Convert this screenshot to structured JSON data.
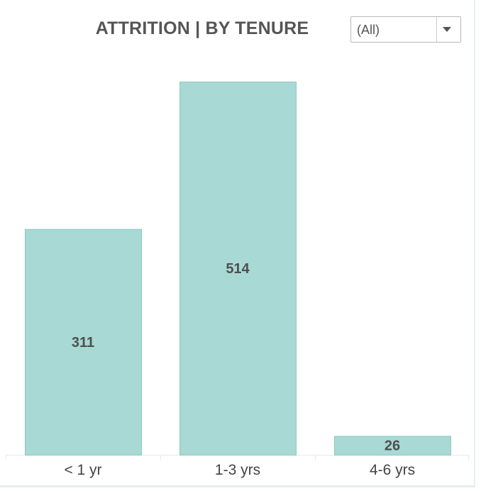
{
  "header": {
    "title": "ATTRITION | BY TENURE"
  },
  "filter": {
    "selected": "(All)",
    "icon": "chevron-down-icon"
  },
  "chart_data": {
    "type": "bar",
    "title": "ATTRITION | BY TENURE",
    "xlabel": "",
    "ylabel": "",
    "categories": [
      "< 1 yr",
      "1-3 yrs",
      "4-6 yrs"
    ],
    "values": [
      311,
      514,
      26
    ],
    "ylim": [
      0,
      514
    ],
    "grid": false,
    "bar_color": "#a8d9d5"
  }
}
